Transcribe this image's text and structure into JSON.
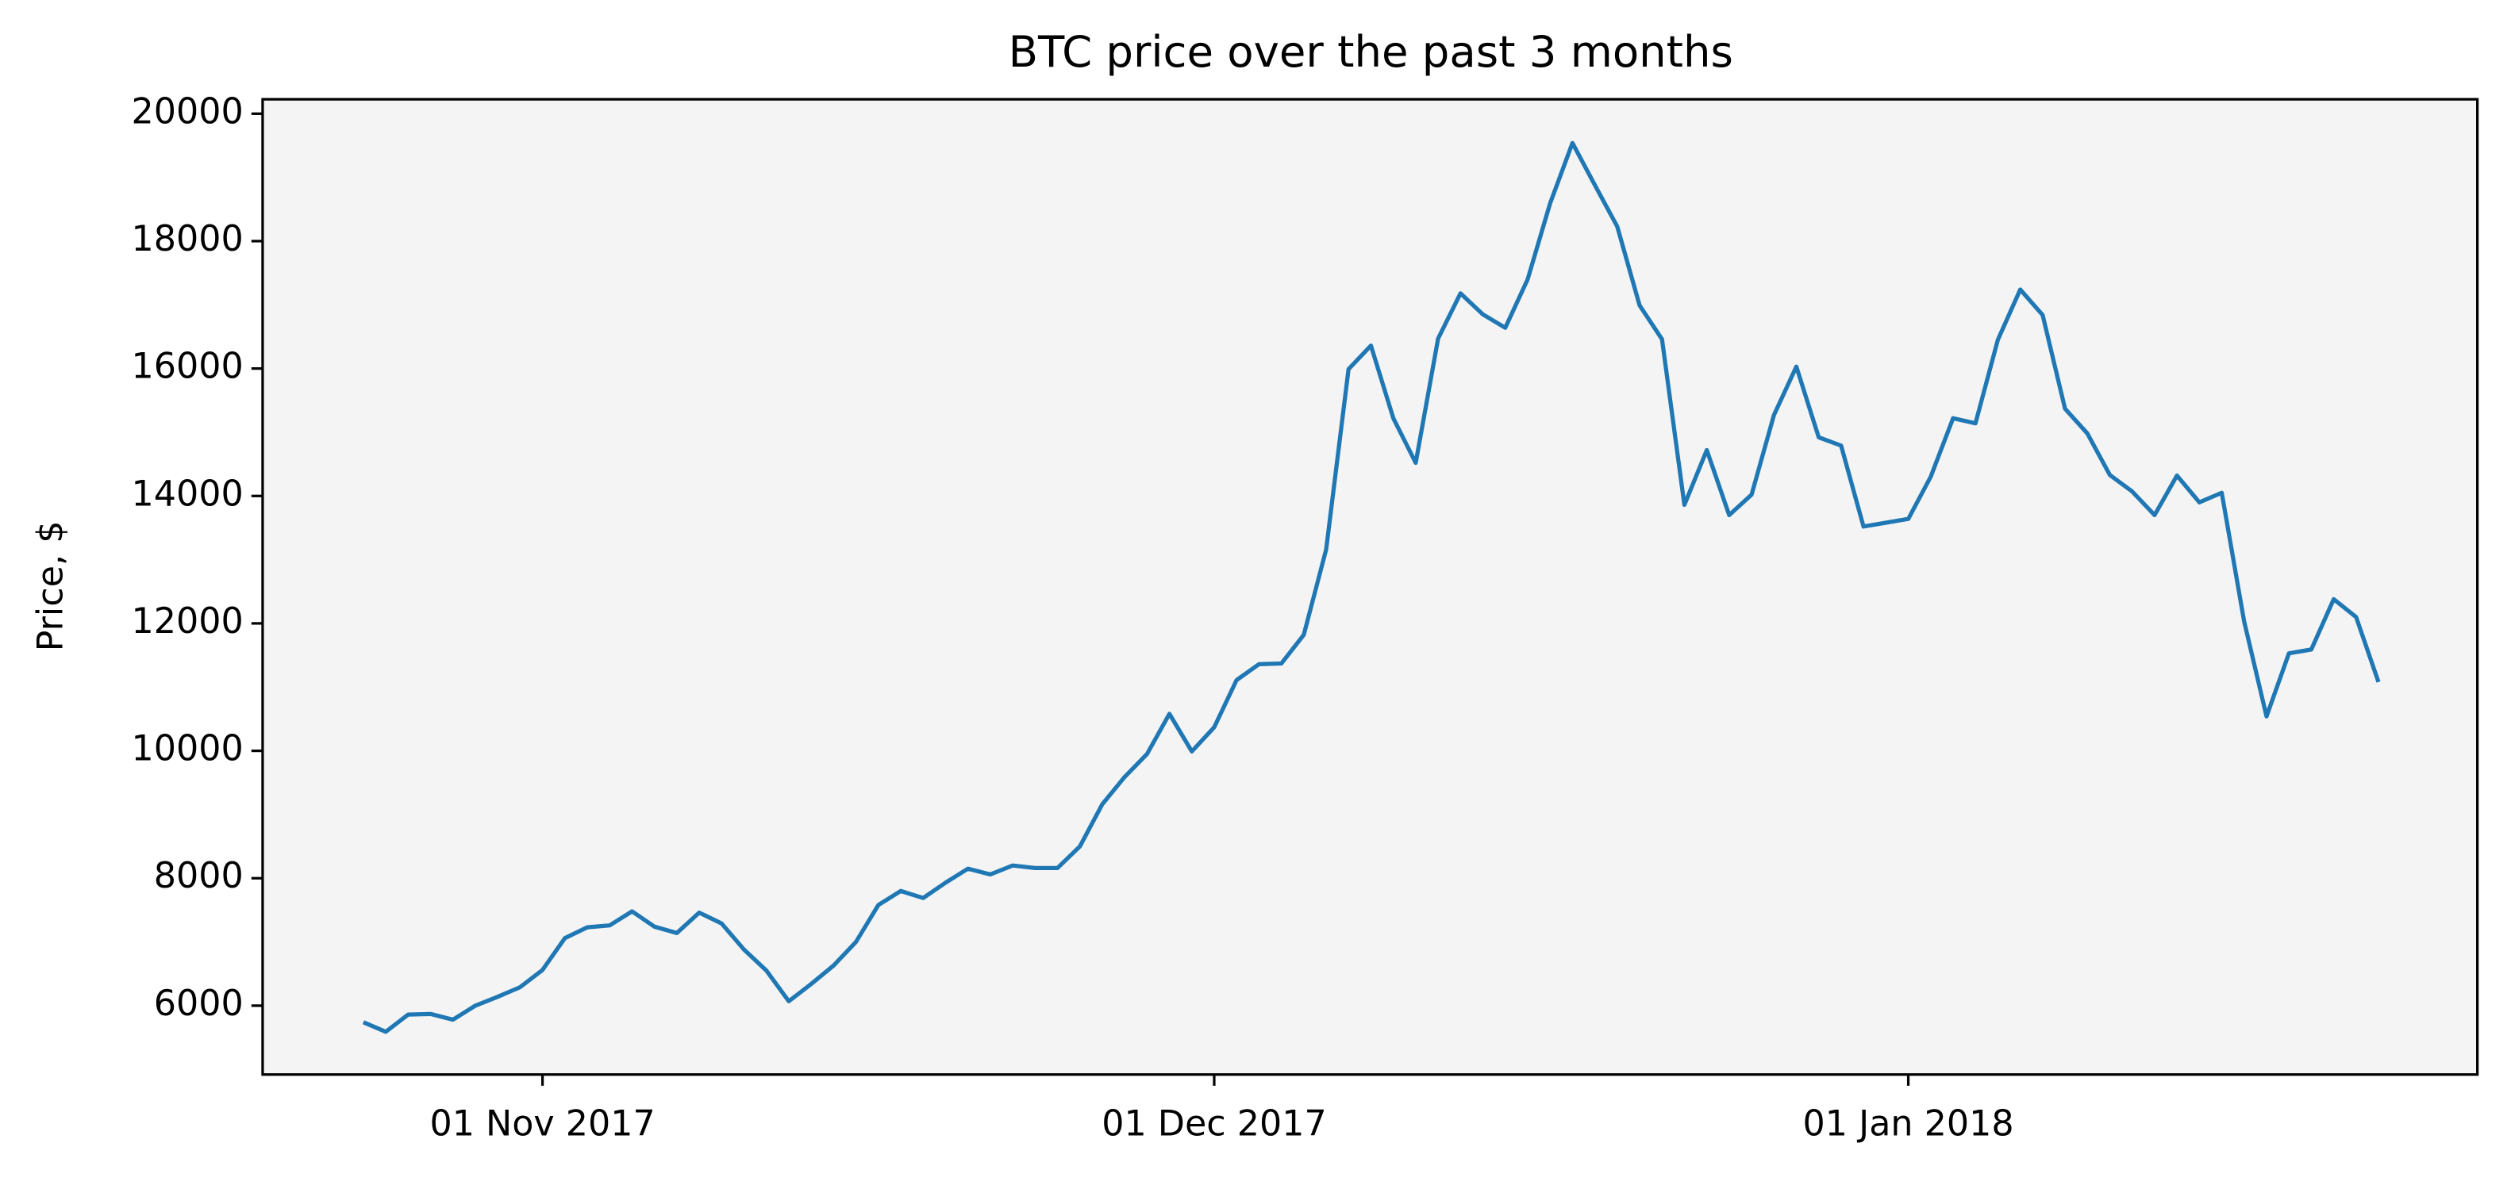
{
  "chart_data": {
    "type": "line",
    "title": "BTC price over the past 3 months",
    "ylabel": "Price, $",
    "x": [
      "2017-10-24",
      "2017-10-25",
      "2017-10-26",
      "2017-10-27",
      "2017-10-28",
      "2017-10-29",
      "2017-10-30",
      "2017-10-31",
      "2017-11-01",
      "2017-11-02",
      "2017-11-03",
      "2017-11-04",
      "2017-11-05",
      "2017-11-06",
      "2017-11-07",
      "2017-11-08",
      "2017-11-09",
      "2017-11-10",
      "2017-11-11",
      "2017-11-12",
      "2017-11-13",
      "2017-11-14",
      "2017-11-15",
      "2017-11-16",
      "2017-11-17",
      "2017-11-18",
      "2017-11-19",
      "2017-11-20",
      "2017-11-21",
      "2017-11-22",
      "2017-11-23",
      "2017-11-24",
      "2017-11-25",
      "2017-11-26",
      "2017-11-27",
      "2017-11-28",
      "2017-11-29",
      "2017-11-30",
      "2017-12-01",
      "2017-12-02",
      "2017-12-03",
      "2017-12-04",
      "2017-12-05",
      "2017-12-06",
      "2017-12-07",
      "2017-12-08",
      "2017-12-09",
      "2017-12-10",
      "2017-12-11",
      "2017-12-12",
      "2017-12-13",
      "2017-12-14",
      "2017-12-15",
      "2017-12-16",
      "2017-12-17",
      "2017-12-18",
      "2017-12-19",
      "2017-12-20",
      "2017-12-21",
      "2017-12-22",
      "2017-12-23",
      "2017-12-24",
      "2017-12-25",
      "2017-12-26",
      "2017-12-27",
      "2017-12-28",
      "2017-12-29",
      "2017-12-30",
      "2017-12-31",
      "2018-01-01",
      "2018-01-02",
      "2018-01-03",
      "2018-01-04",
      "2018-01-05",
      "2018-01-06",
      "2018-01-07",
      "2018-01-08",
      "2018-01-09",
      "2018-01-10",
      "2018-01-11",
      "2018-01-12",
      "2018-01-13",
      "2018-01-14",
      "2018-01-15",
      "2018-01-16",
      "2018-01-17",
      "2018-01-18",
      "2018-01-19",
      "2018-01-20",
      "2018-01-21",
      "2018-01-22"
    ],
    "series": [
      {
        "name": "BTC",
        "color": "#1f77b4",
        "values": [
          5740,
          5590,
          5860,
          5870,
          5780,
          6000,
          6140,
          6290,
          6560,
          7060,
          7230,
          7260,
          7480,
          7240,
          7140,
          7460,
          7290,
          6880,
          6550,
          6070,
          6340,
          6630,
          7000,
          7580,
          7800,
          7690,
          7930,
          8150,
          8060,
          8200,
          8160,
          8160,
          8500,
          9160,
          9590,
          9950,
          10580,
          9990,
          10370,
          11110,
          11360,
          11370,
          11820,
          13160,
          15990,
          16360,
          15220,
          14520,
          16470,
          17180,
          16850,
          16640,
          17400,
          18590,
          19540,
          18880,
          18230,
          16990,
          16460,
          13860,
          14720,
          13700,
          14020,
          15270,
          16030,
          14920,
          14790,
          13520,
          13580,
          13640,
          14300,
          15220,
          15140,
          16450,
          17240,
          16840,
          15370,
          14980,
          14330,
          14070,
          13700,
          14320,
          13900,
          14050,
          12030,
          10540,
          11530,
          11590,
          12380,
          12100,
          11080
        ]
      }
    ],
    "xlim": [
      "2017-10-19T12:00",
      "2018-01-26T10:00"
    ],
    "xticks": [
      {
        "value": "2017-11-01",
        "label": "01 Nov 2017"
      },
      {
        "value": "2017-12-01",
        "label": "01 Dec 2017"
      },
      {
        "value": "2018-01-01",
        "label": "01 Jan 2018"
      }
    ],
    "ylim": [
      4919,
      20226
    ],
    "yticks": [
      6000,
      8000,
      10000,
      12000,
      14000,
      16000,
      18000,
      20000
    ],
    "grid": false,
    "background": "#f4f4f4"
  }
}
